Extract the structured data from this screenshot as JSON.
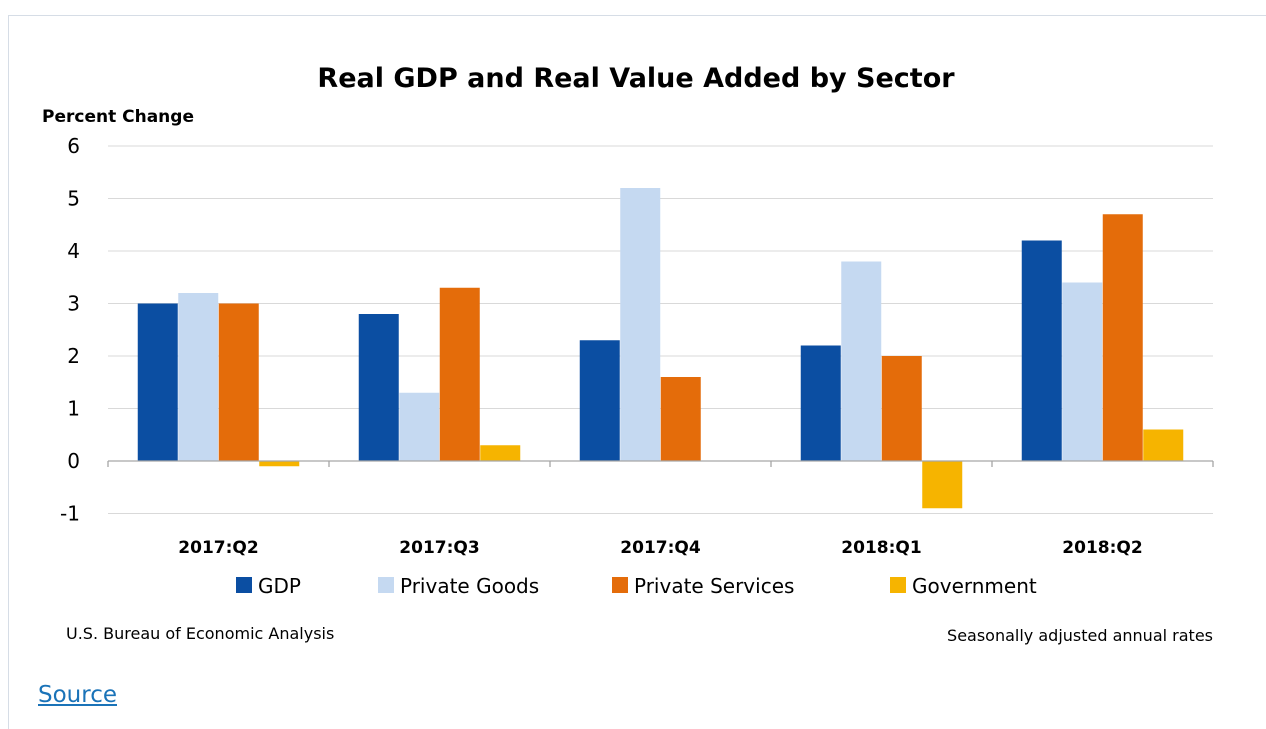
{
  "chart_data": {
    "type": "bar",
    "title": "Real GDP and Real Value Added by Sector",
    "ylabel": "Percent Change",
    "xlabel": "",
    "ylim": [
      -1,
      6
    ],
    "yticks": [
      6,
      5,
      4,
      3,
      2,
      1,
      0,
      -1
    ],
    "categories": [
      "2017:Q2",
      "2017:Q3",
      "2017:Q4",
      "2018:Q1",
      "2018:Q2"
    ],
    "series": [
      {
        "name": "GDP",
        "color": "#0b4ea2",
        "values": [
          3.0,
          2.8,
          2.3,
          2.2,
          4.2
        ]
      },
      {
        "name": "Private Goods",
        "color": "#c5d9f1",
        "values": [
          3.2,
          1.3,
          5.2,
          3.8,
          3.4
        ]
      },
      {
        "name": "Private Services",
        "color": "#e46c0a",
        "values": [
          3.0,
          3.3,
          1.6,
          2.0,
          4.7
        ]
      },
      {
        "name": "Government",
        "color": "#f6b400",
        "values": [
          -0.1,
          0.3,
          0.0,
          -0.9,
          0.6
        ]
      }
    ],
    "grid": true,
    "legend_position": "bottom",
    "footnote_left": "U.S. Bureau of Economic Analysis",
    "footnote_right": "Seasonally adjusted annual rates"
  },
  "links": {
    "source": "Source"
  }
}
